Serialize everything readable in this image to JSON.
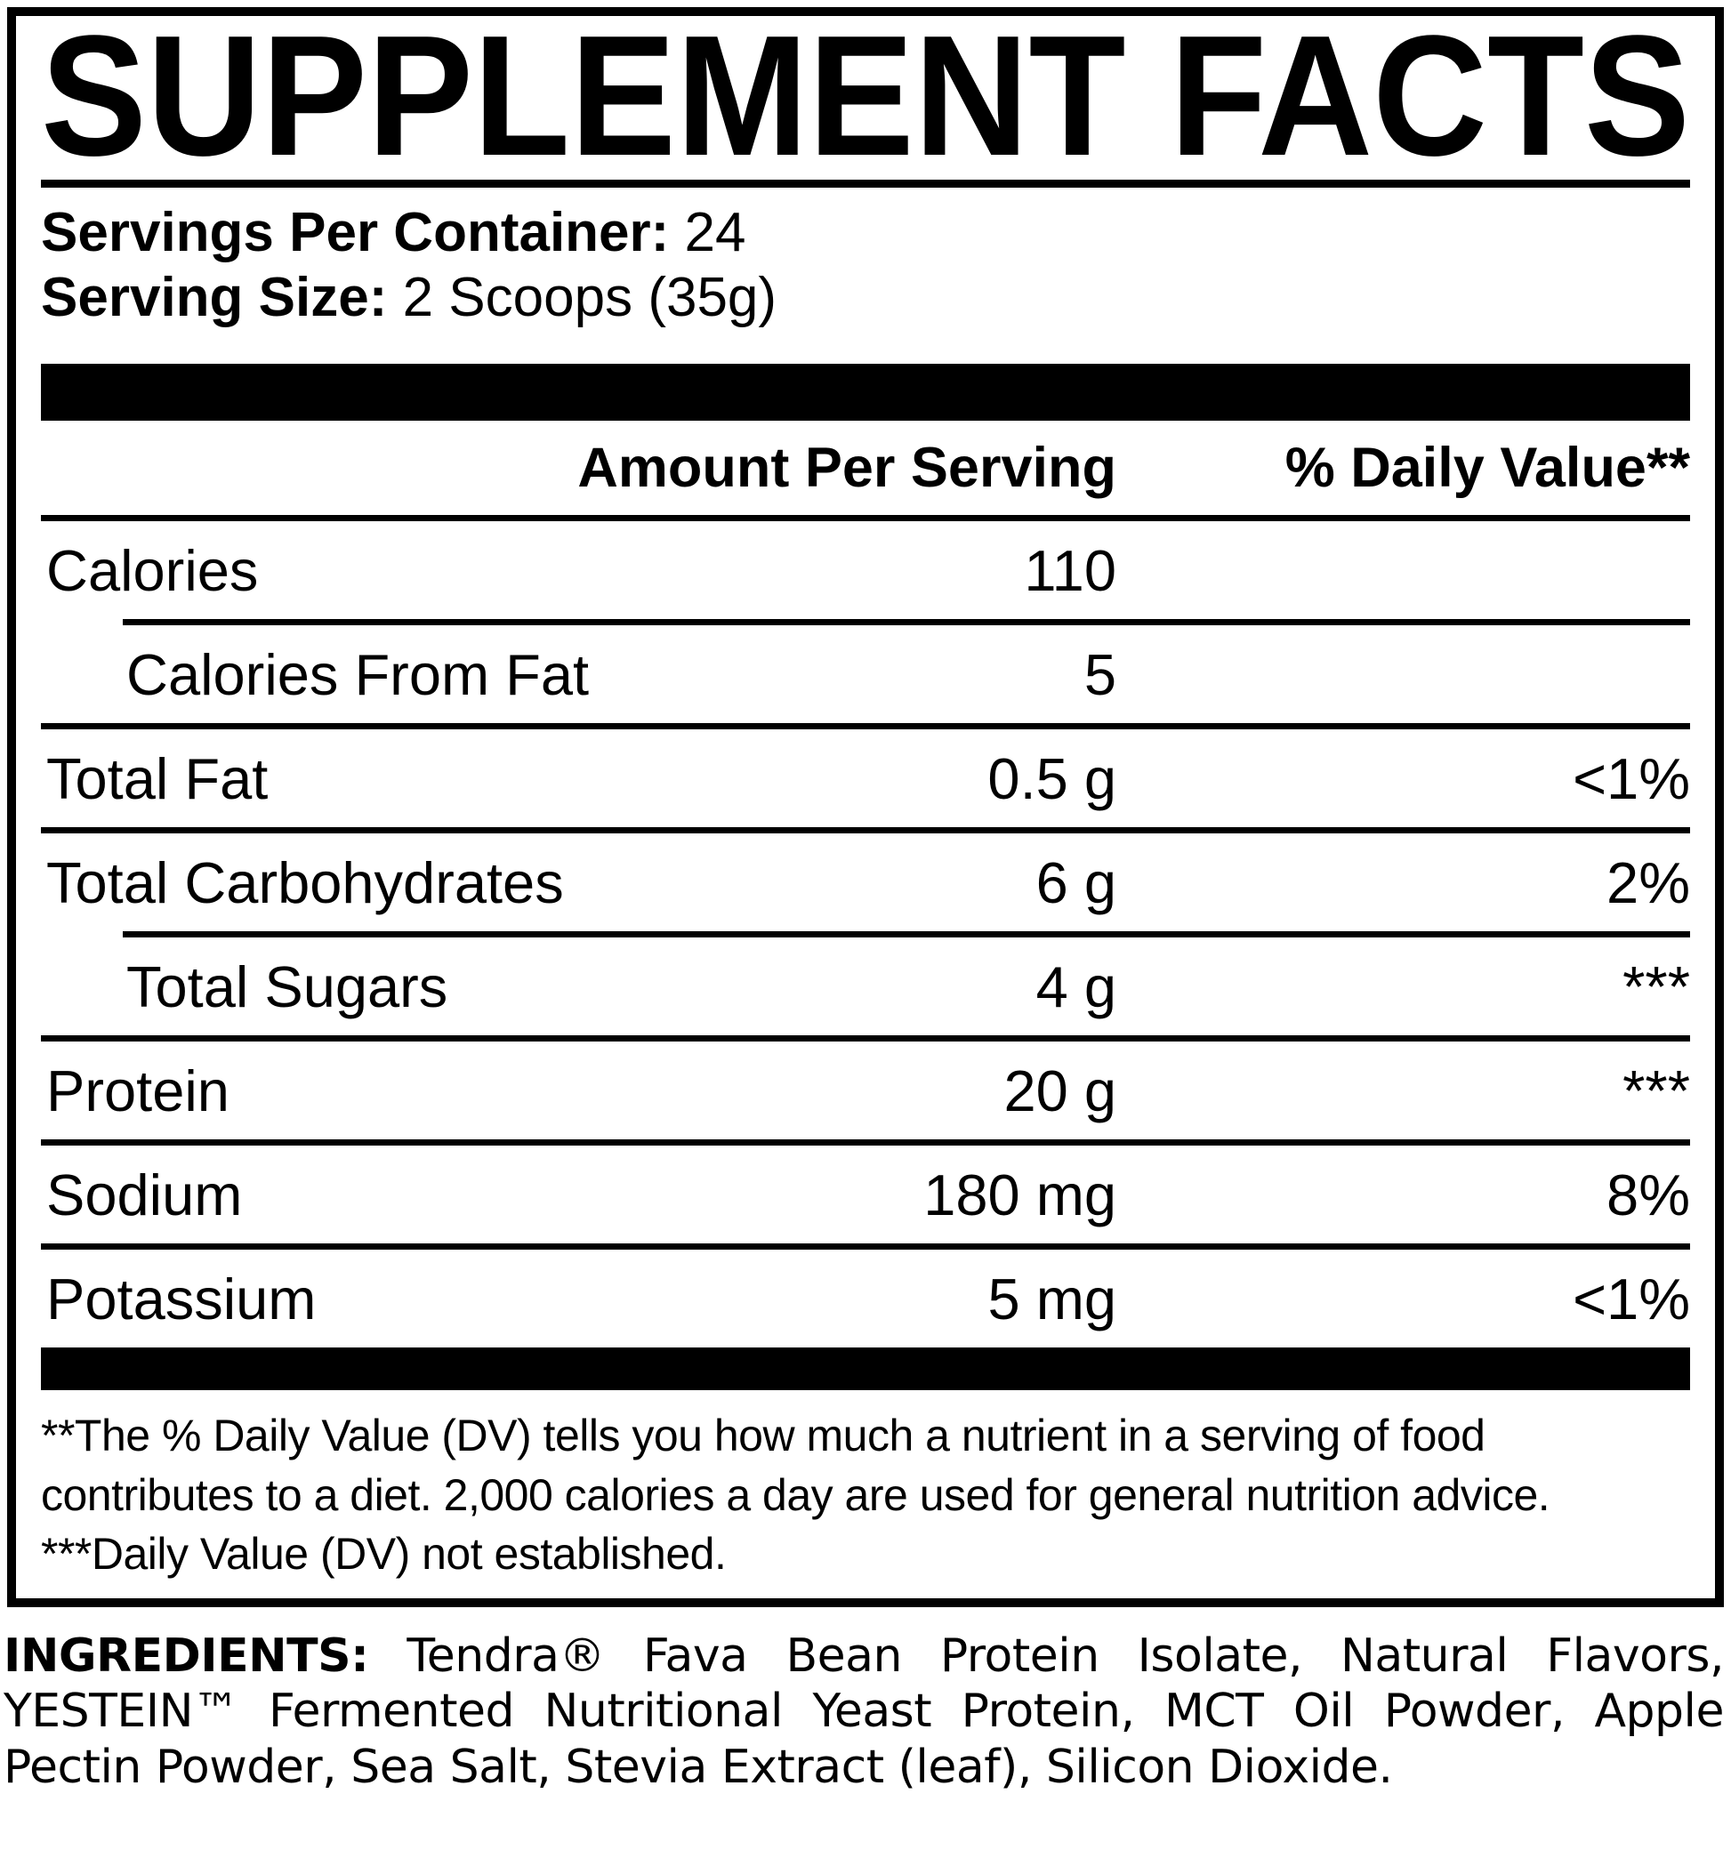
{
  "title": "SUPPLEMENT FACTS",
  "serving_info": {
    "servings_label": "Servings Per Container:",
    "servings_value": "24",
    "size_label": "Serving Size:",
    "size_value": "2 Scoops (35g)"
  },
  "table": {
    "amount_header": "Amount Per Serving",
    "dv_header": "% Daily Value**",
    "rows": [
      {
        "name": "Calories",
        "amount": "110",
        "dv": "",
        "indent": false,
        "sep_after": "indent"
      },
      {
        "name": "Calories From Fat",
        "amount": "5",
        "dv": "",
        "indent": true,
        "sep_after": "full"
      },
      {
        "name": "Total Fat",
        "amount": "0.5 g",
        "dv": "<1%",
        "indent": false,
        "sep_after": "full"
      },
      {
        "name": "Total Carbohydrates",
        "amount": "6 g",
        "dv": "2%",
        "indent": false,
        "sep_after": "indent"
      },
      {
        "name": "Total Sugars",
        "amount": "4 g",
        "dv": "***",
        "indent": true,
        "sep_after": "full"
      },
      {
        "name": "Protein",
        "amount": "20 g",
        "dv": "***",
        "indent": false,
        "sep_after": "full"
      },
      {
        "name": "Sodium",
        "amount": "180 mg",
        "dv": "8%",
        "indent": false,
        "sep_after": "full"
      },
      {
        "name": "Potassium",
        "amount": "5 mg",
        "dv": "<1%",
        "indent": false,
        "sep_after": "none"
      }
    ]
  },
  "footnotes": {
    "dv_note": "**The % Daily Value (DV) tells you how much a nutrient in a serving of food contributes to a diet. 2,000 calories a day are used for general nutrition advice.",
    "not_established_note": "***Daily Value (DV) not established."
  },
  "ingredients": {
    "label": "INGREDIENTS:",
    "text": "Tendra® Fava Bean Protein Isolate, Natural Flavors, YESTEIN™ Fermented Nutritional Yeast Protein, MCT Oil Powder, Apple Pectin Powder, Sea Salt, Stevia Extract (leaf), Silicon Dioxide."
  },
  "colors": {
    "text": "#000000",
    "background": "#ffffff"
  }
}
